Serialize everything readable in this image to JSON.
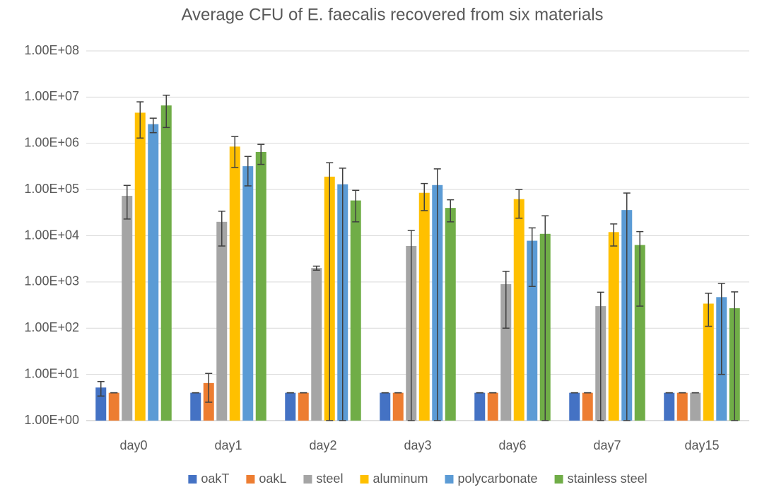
{
  "chart_data": {
    "type": "bar",
    "title": "Average CFU of E. faecalis recovered from six materials",
    "log_scale": true,
    "grid": true,
    "legend": "bottom",
    "categories": [
      "day0",
      "day1",
      "day2",
      "day3",
      "day6",
      "day7",
      "day15"
    ],
    "ylim": [
      1,
      100000000
    ],
    "yticks": [
      {
        "value": 1,
        "label": "1.00E+00"
      },
      {
        "value": 10,
        "label": "1.00E+01"
      },
      {
        "value": 100,
        "label": "1.00E+02"
      },
      {
        "value": 1000,
        "label": "1.00E+03"
      },
      {
        "value": 10000,
        "label": "1.00E+04"
      },
      {
        "value": 100000,
        "label": "1.00E+05"
      },
      {
        "value": 1000000,
        "label": "1.00E+06"
      },
      {
        "value": 10000000,
        "label": "1.00E+07"
      },
      {
        "value": 100000000,
        "label": "1.00E+08"
      }
    ],
    "series": [
      {
        "name": "oakT",
        "color": "#4472c4",
        "values": [
          5.2,
          4,
          4,
          4,
          4,
          4,
          4
        ],
        "errors": [
          1.8,
          0,
          0,
          0,
          0,
          0,
          0
        ]
      },
      {
        "name": "oakL",
        "color": "#ed7d31",
        "values": [
          4,
          6.5,
          4,
          4,
          4,
          4,
          4
        ],
        "errors": [
          0,
          4,
          0,
          0,
          0,
          0,
          0
        ]
      },
      {
        "name": "steel",
        "color": "#a5a5a5",
        "values": [
          73000,
          20000,
          2000,
          6000,
          900,
          300,
          4
        ],
        "errors": [
          50000,
          14000,
          200,
          7000,
          800,
          300,
          0
        ]
      },
      {
        "name": "aluminum",
        "color": "#ffc000",
        "values": [
          4600000,
          850000,
          190000,
          85000,
          62000,
          12000,
          340
        ],
        "errors": [
          3300000,
          550000,
          190000,
          50000,
          38000,
          6000,
          230
        ]
      },
      {
        "name": "polycarbonate",
        "color": "#5b9bd5",
        "values": [
          2600000,
          320000,
          130000,
          125000,
          7800,
          36000,
          470
        ],
        "errors": [
          900000,
          200000,
          160000,
          155000,
          7000,
          48000,
          460
        ]
      },
      {
        "name": "stainless steel",
        "color": "#70ad47",
        "values": [
          6600000,
          650000,
          58000,
          40000,
          11000,
          6300,
          270
        ],
        "errors": [
          4400000,
          300000,
          38000,
          20000,
          16000,
          6000,
          340
        ]
      }
    ]
  }
}
